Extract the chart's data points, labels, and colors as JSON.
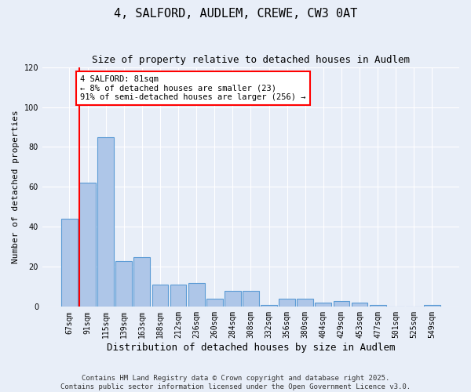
{
  "title": "4, SALFORD, AUDLEM, CREWE, CW3 0AT",
  "subtitle": "Size of property relative to detached houses in Audlem",
  "xlabel": "Distribution of detached houses by size in Audlem",
  "ylabel": "Number of detached properties",
  "categories": [
    "67sqm",
    "91sqm",
    "115sqm",
    "139sqm",
    "163sqm",
    "188sqm",
    "212sqm",
    "236sqm",
    "260sqm",
    "284sqm",
    "308sqm",
    "332sqm",
    "356sqm",
    "380sqm",
    "404sqm",
    "429sqm",
    "453sqm",
    "477sqm",
    "501sqm",
    "525sqm",
    "549sqm"
  ],
  "values": [
    44,
    62,
    85,
    23,
    25,
    11,
    11,
    12,
    4,
    8,
    8,
    1,
    4,
    4,
    2,
    3,
    2,
    1,
    0,
    0,
    1
  ],
  "bar_color": "#aec6e8",
  "bar_edge_color": "#5b9bd5",
  "annotation_text": "4 SALFORD: 81sqm\n← 8% of detached houses are smaller (23)\n91% of semi-detached houses are larger (256) →",
  "annotation_box_color": "#ffffff",
  "annotation_box_edge_color": "#ff0000",
  "red_line_x": 0.55,
  "ylim": [
    0,
    120
  ],
  "yticks": [
    0,
    20,
    40,
    60,
    80,
    100,
    120
  ],
  "background_color": "#e8eef8",
  "grid_color": "#ffffff",
  "footer_text": "Contains HM Land Registry data © Crown copyright and database right 2025.\nContains public sector information licensed under the Open Government Licence v3.0.",
  "title_fontsize": 11,
  "subtitle_fontsize": 9,
  "xlabel_fontsize": 9,
  "ylabel_fontsize": 8,
  "tick_fontsize": 7,
  "annotation_fontsize": 7.5,
  "footer_fontsize": 6.5
}
